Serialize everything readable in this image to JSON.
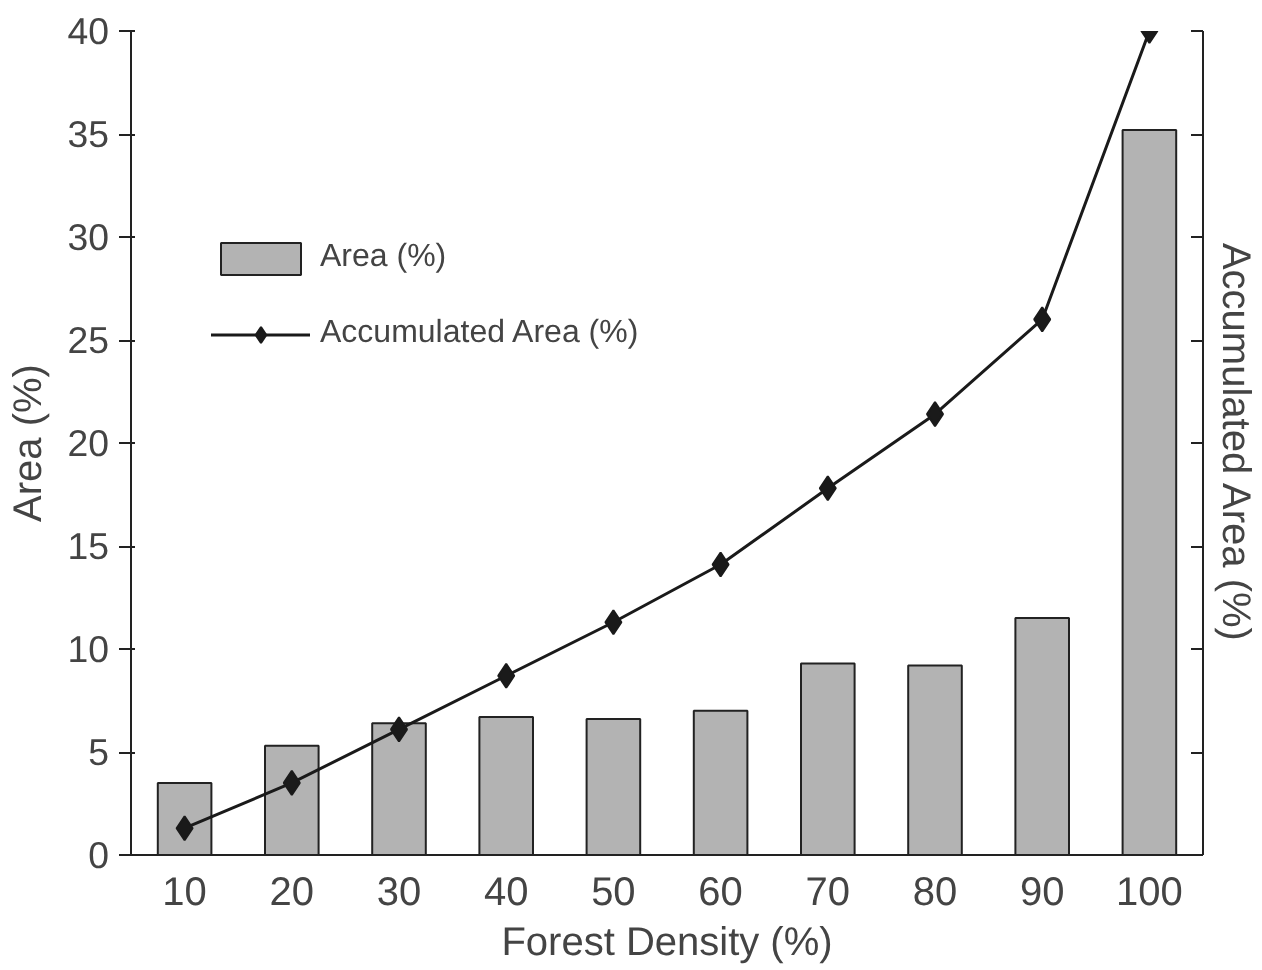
{
  "chart_data": {
    "type": "bar",
    "xlabel": "Forest Density (%)",
    "ylabel": "Area (%)",
    "y2label": "Accumulated Area (%)",
    "categories": [
      "10",
      "20",
      "30",
      "40",
      "50",
      "60",
      "70",
      "80",
      "90",
      "100"
    ],
    "series": [
      {
        "name": "Area (%)",
        "color": "#b3b3b3",
        "values": [
          3.5,
          5.3,
          6.4,
          6.7,
          6.6,
          7.0,
          9.3,
          9.2,
          11.5,
          35.2
        ]
      },
      {
        "name": "Accumulated Area (%)",
        "type": "line",
        "color": "#1a1a1a",
        "marker": "diamond",
        "values": [
          1.3,
          3.5,
          6.1,
          8.7,
          11.3,
          14.1,
          17.8,
          21.4,
          26.0,
          40.0
        ]
      }
    ],
    "ylim": [
      0,
      40
    ],
    "yticks": [
      0,
      5,
      10,
      15,
      20,
      25,
      30,
      35,
      40
    ],
    "grid": false,
    "legend": "top left"
  }
}
